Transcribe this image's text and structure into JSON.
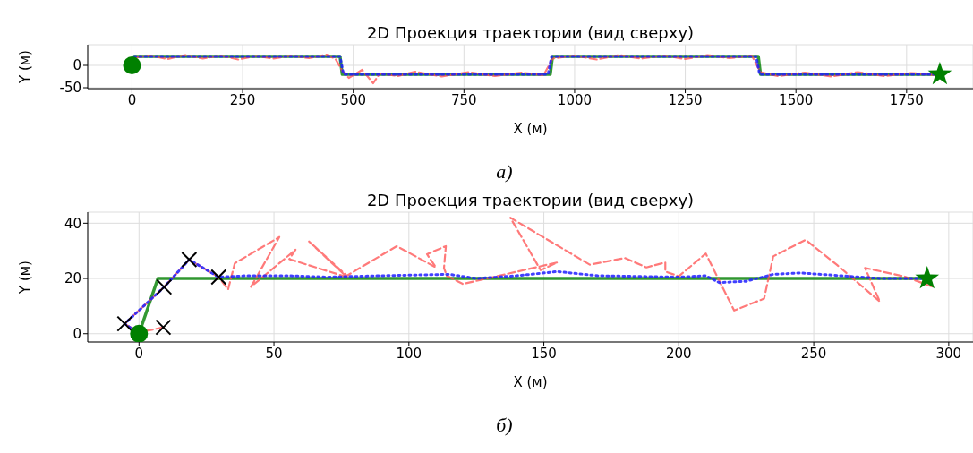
{
  "chart_data": [
    {
      "type": "line",
      "title": "2D Проекция траектории (вид сверху)",
      "xlabel": "X (м)",
      "ylabel": "Y (м)",
      "annotations": [
        "а)"
      ],
      "xlim": [
        -100,
        1900
      ],
      "ylim": [
        -52,
        46
      ],
      "xticks": [
        0,
        250,
        500,
        750,
        1000,
        1250,
        1500,
        1750
      ],
      "yticks": [
        -50,
        0
      ],
      "grid": true,
      "series": [
        {
          "type": "line",
          "line_style": "solid",
          "marker": "none",
          "color": "#008000",
          "x": [
            5,
            470,
            475,
            945,
            950,
            1415,
            1420,
            1825
          ],
          "values": [
            20,
            20,
            -20,
            -20,
            20,
            20,
            -20,
            -20
          ]
        },
        {
          "type": "line",
          "line_style": "dashed",
          "marker": "none",
          "color": "#ff4d4d",
          "x": [
            10,
            40,
            80,
            120,
            160,
            200,
            240,
            280,
            320,
            360,
            400,
            440,
            460,
            475,
            490,
            520,
            545,
            560,
            600,
            640,
            700,
            760,
            820,
            880,
            930,
            950,
            1000,
            1050,
            1100,
            1150,
            1200,
            1250,
            1300,
            1350,
            1400,
            1420,
            1460,
            1520,
            1580,
            1640,
            1700,
            1760,
            1820
          ],
          "values": [
            18,
            22,
            14,
            23,
            15,
            22,
            13,
            21,
            15,
            22,
            16,
            24,
            14,
            -12,
            -28,
            -10,
            -40,
            -18,
            -24,
            -14,
            -25,
            -15,
            -24,
            -16,
            -22,
            15,
            22,
            13,
            23,
            15,
            22,
            14,
            23,
            16,
            22,
            -15,
            -24,
            -16,
            -25,
            -15,
            -24,
            -17,
            -22
          ]
        },
        {
          "type": "line",
          "line_style": "dotted",
          "marker": "none",
          "color": "#1f1fff",
          "x": [
            5,
            470,
            478,
            940,
            948,
            1410,
            1418,
            1820
          ],
          "values": [
            20,
            20,
            -20,
            -20,
            20,
            20,
            -20,
            -20
          ]
        },
        {
          "type": "scatter",
          "marker": "circle",
          "color": "#008000",
          "x": [
            0
          ],
          "values": [
            0
          ]
        },
        {
          "type": "scatter",
          "marker": "star",
          "color": "#008000",
          "x": [
            1825
          ],
          "values": [
            -20
          ]
        }
      ]
    },
    {
      "type": "line",
      "title": "2D Проекция траектории (вид сверху)",
      "xlabel": "X (м)",
      "ylabel": "Y (м)",
      "annotations": [
        "б)"
      ],
      "xlim": [
        -19,
        309
      ],
      "ylim": [
        -3,
        44
      ],
      "xticks": [
        0,
        50,
        100,
        150,
        200,
        250,
        300
      ],
      "yticks": [
        0,
        20,
        40
      ],
      "grid": true,
      "series": [
        {
          "type": "line",
          "line_style": "solid",
          "marker": "none",
          "color": "#008000",
          "x": [
            0,
            7,
            292
          ],
          "values": [
            0,
            20,
            20
          ]
        },
        {
          "type": "line",
          "line_style": "dashed",
          "marker": "none",
          "color": "#ff4d4d",
          "x": [
            9,
            0,
            -5.3,
            9.3,
            18.6,
            29.5,
            33,
            35.5,
            52,
            41.5,
            58,
            55.7,
            77,
            63,
            77,
            95.5,
            110,
            106.7,
            113.7,
            113,
            114,
            120,
            155,
            148.8,
            137.6,
            167,
            180,
            188,
            195,
            195,
            200,
            210,
            220.5,
            231.6,
            235,
            247,
            258.5,
            274.5,
            269,
            283.7,
            294
          ],
          "values": [
            2.3,
            0.5,
            3.6,
            16.9,
            26.8,
            20.5,
            16,
            25.5,
            35,
            17,
            30.4,
            27,
            20.5,
            33.4,
            21,
            31.7,
            24,
            28.8,
            31.7,
            23.8,
            21,
            18,
            25.8,
            23,
            42,
            25,
            27.4,
            24,
            25.8,
            22.5,
            20.8,
            29,
            8.4,
            12.7,
            28,
            34,
            25,
            11.6,
            23.8,
            20.7,
            17
          ]
        },
        {
          "type": "line",
          "line_style": "dotted",
          "marker": "none",
          "color": "#1f1fff",
          "x": [
            0,
            -5.3,
            9.3,
            18.6,
            29.5,
            40,
            55,
            70,
            90,
            115,
            125,
            140,
            155,
            170,
            200,
            210,
            215,
            225,
            235,
            245,
            260,
            275,
            292
          ],
          "values": [
            0,
            3.6,
            16.9,
            26.8,
            20.5,
            21,
            21,
            20.5,
            21,
            21.5,
            20,
            21,
            22.5,
            21,
            20.5,
            21,
            18.5,
            19,
            21.5,
            22,
            21,
            20,
            20
          ]
        },
        {
          "type": "scatter",
          "marker": "circle",
          "color": "#008000",
          "x": [
            0
          ],
          "values": [
            0
          ]
        },
        {
          "type": "scatter",
          "marker": "star",
          "color": "#008000",
          "x": [
            292
          ],
          "values": [
            20
          ]
        },
        {
          "type": "scatter",
          "marker": "cross",
          "color": "#000000",
          "x": [
            -5.3,
            9,
            9.3,
            18.6,
            29.5
          ],
          "values": [
            3.6,
            2.3,
            16.9,
            26.8,
            20.5
          ]
        }
      ]
    }
  ]
}
